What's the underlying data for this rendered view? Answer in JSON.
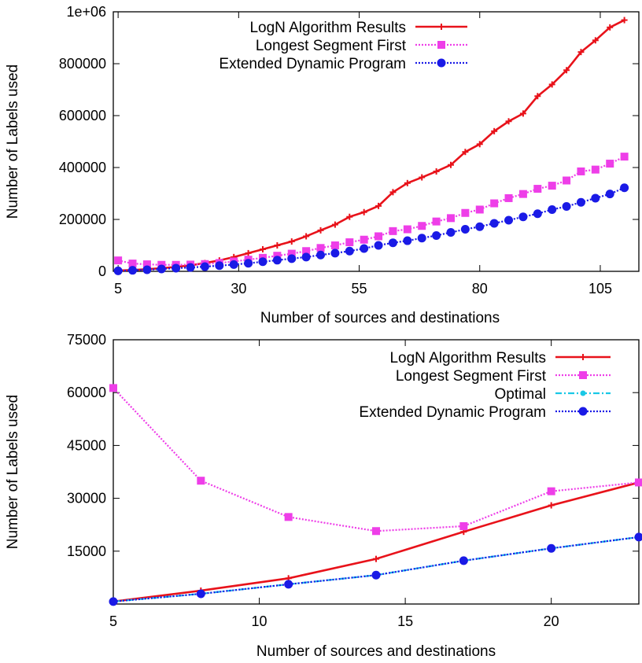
{
  "chart_data": [
    {
      "type": "line",
      "xlabel": "Number of sources and destinations",
      "ylabel": "Number of Labels used",
      "xlim": [
        4,
        113
      ],
      "ylim": [
        0,
        1000000
      ],
      "xticks": [
        5,
        30,
        55,
        80,
        105
      ],
      "yticks": [
        0,
        200000,
        400000,
        600000,
        800000,
        1000000
      ],
      "ytick_labels": [
        "0",
        "200000",
        "400000",
        "600000",
        "800000",
        "1e+06"
      ],
      "grid": false,
      "legend_position": "top-right",
      "x": [
        5,
        8,
        11,
        14,
        17,
        20,
        23,
        26,
        29,
        32,
        35,
        38,
        41,
        44,
        47,
        50,
        53,
        56,
        59,
        62,
        65,
        68,
        71,
        74,
        77,
        80,
        83,
        86,
        89,
        92,
        95,
        98,
        101,
        104,
        107,
        110
      ],
      "series": [
        {
          "name": "LogN Algorithm Results",
          "color": "#e8121a",
          "style": "solid",
          "marker": "plus",
          "values": [
            3000,
            5000,
            8000,
            12000,
            17000,
            23000,
            32000,
            42000,
            55000,
            70000,
            85000,
            100000,
            115000,
            135000,
            158000,
            180000,
            210000,
            228000,
            252000,
            305000,
            340000,
            362000,
            385000,
            410000,
            460000,
            490000,
            540000,
            578000,
            608000,
            675000,
            720000,
            775000,
            845000,
            890000,
            940000,
            968000
          ]
        },
        {
          "name": "Longest Segment First",
          "color": "#ee3ee8",
          "style": "dotted",
          "marker": "square",
          "values": [
            42000,
            30000,
            27000,
            25000,
            25000,
            26000,
            28000,
            32000,
            38000,
            45000,
            52000,
            60000,
            68000,
            78000,
            90000,
            100000,
            112000,
            122000,
            135000,
            155000,
            162000,
            175000,
            192000,
            205000,
            225000,
            238000,
            262000,
            282000,
            298000,
            318000,
            330000,
            350000,
            385000,
            392000,
            415000,
            442000
          ]
        },
        {
          "name": "Extended Dynamic Program",
          "color": "#1a1ae6",
          "style": "dotted",
          "marker": "circle",
          "values": [
            2000,
            4000,
            6000,
            9000,
            12000,
            15000,
            18000,
            22000,
            26000,
            31000,
            37000,
            43000,
            49000,
            55000,
            63000,
            70000,
            78000,
            88000,
            100000,
            110000,
            118000,
            128000,
            138000,
            150000,
            162000,
            172000,
            185000,
            197000,
            210000,
            222000,
            238000,
            250000,
            266000,
            282000,
            298000,
            322000
          ]
        }
      ]
    },
    {
      "type": "line",
      "xlabel": "Number of sources and destinations",
      "ylabel": "Number of Labels used",
      "xlim": [
        5,
        23
      ],
      "ylim": [
        0,
        75000
      ],
      "xticks": [
        5,
        10,
        15,
        20
      ],
      "yticks": [
        15000,
        30000,
        45000,
        60000,
        75000
      ],
      "ytick_labels": [
        "15000",
        "30000",
        "45000",
        "60000",
        "75000"
      ],
      "grid": false,
      "legend_position": "top-right",
      "x": [
        5,
        8,
        11,
        14,
        17,
        20,
        23
      ],
      "series": [
        {
          "name": "LogN Algorithm Results",
          "color": "#e8121a",
          "style": "solid",
          "marker": "plus",
          "values": [
            700,
            3800,
            7300,
            12800,
            20500,
            28000,
            34500
          ]
        },
        {
          "name": "Longest Segment First",
          "color": "#ee3ee8",
          "style": "dotted",
          "marker": "square",
          "values": [
            61300,
            35000,
            24700,
            20700,
            22100,
            32000,
            34500
          ]
        },
        {
          "name": "Optimal",
          "color": "#19c8e6",
          "style": "dashdot",
          "marker": "circle-small",
          "values": [
            700,
            2900,
            5600,
            8200,
            12300,
            15800,
            19000
          ]
        },
        {
          "name": "Extended Dynamic Program",
          "color": "#1a1ae6",
          "style": "dotted",
          "marker": "circle",
          "values": [
            700,
            2900,
            5600,
            8200,
            12300,
            15800,
            19000
          ]
        }
      ]
    }
  ]
}
